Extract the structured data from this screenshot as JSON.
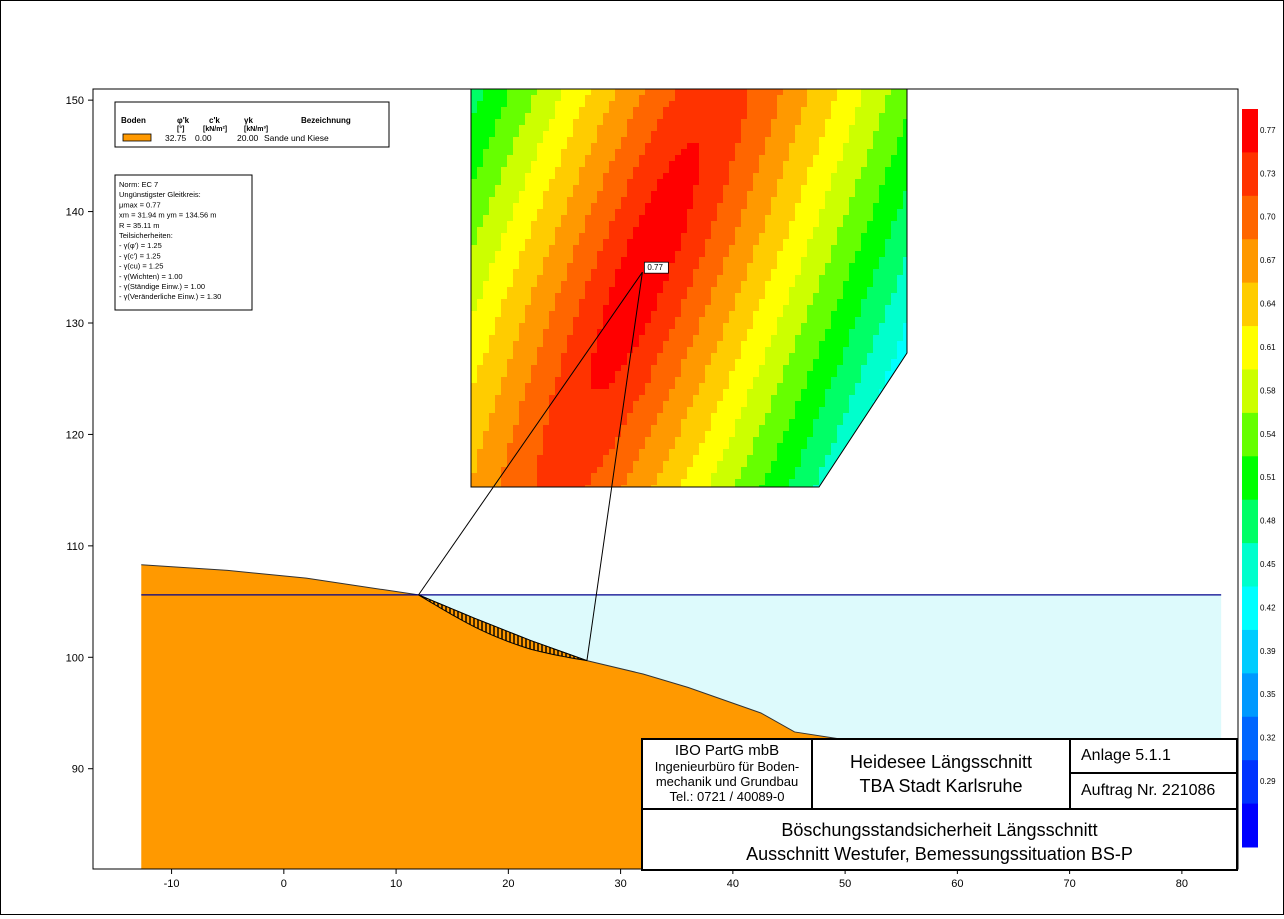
{
  "chart_data": {
    "type": "contour",
    "x_ticks": [
      "-10",
      "0",
      "10",
      "20",
      "30",
      "40",
      "50",
      "60",
      "70",
      "80"
    ],
    "y_ticks": [
      "150",
      "140",
      "130",
      "120",
      "110",
      "100",
      "90"
    ],
    "xlim": [
      -17,
      85
    ],
    "ylim": [
      81,
      151
    ],
    "grid": false,
    "ground_surface": [
      {
        "x": -12.7,
        "y": 108.3
      },
      {
        "x": -5,
        "y": 107.8
      },
      {
        "x": 2,
        "y": 107.1
      },
      {
        "x": 8,
        "y": 106.2
      },
      {
        "x": 12,
        "y": 105.6
      },
      {
        "x": 17,
        "y": 103.5
      },
      {
        "x": 22,
        "y": 101.5
      },
      {
        "x": 27,
        "y": 99.7
      },
      {
        "x": 32,
        "y": 98.5
      },
      {
        "x": 36,
        "y": 97.3
      },
      {
        "x": 42.5,
        "y": 95.0
      },
      {
        "x": 45.5,
        "y": 93.3
      },
      {
        "x": 50,
        "y": 92.6
      },
      {
        "x": 54.5,
        "y": 91.5
      }
    ],
    "water_level": 105.6,
    "water_extent_x": [
      12,
      83.5
    ],
    "critical_circle": {
      "center_x": 31.94,
      "center_y": 134.56,
      "radius": 35.11,
      "entry_x": 12.0,
      "exit_x": 27.0
    },
    "fos_min": 0.77,
    "min_label": "0.77",
    "color_scale": [
      {
        "label": "0.77",
        "color": "#ff0000"
      },
      {
        "label": "0.73",
        "color": "#ff3300"
      },
      {
        "label": "0.70",
        "color": "#ff6600"
      },
      {
        "label": "0.67",
        "color": "#ff9900"
      },
      {
        "label": "0.64",
        "color": "#ffcc00"
      },
      {
        "label": "0.61",
        "color": "#ffff00"
      },
      {
        "label": "0.58",
        "color": "#ccff00"
      },
      {
        "label": "0.54",
        "color": "#66ff00"
      },
      {
        "label": "0.51",
        "color": "#00ff00"
      },
      {
        "label": "0.48",
        "color": "#00ff66"
      },
      {
        "label": "0.45",
        "color": "#00ffcc"
      },
      {
        "label": "0.42",
        "color": "#00ffff"
      },
      {
        "label": "0.39",
        "color": "#00ccff"
      },
      {
        "label": "0.35",
        "color": "#0099ff"
      },
      {
        "label": "0.32",
        "color": "#0066ff"
      },
      {
        "label": "0.29",
        "color": "#0033ff"
      },
      {
        "label": "",
        "color": "#0000ff"
      }
    ]
  },
  "soil_legend": {
    "headers": [
      "Boden",
      "φ'k",
      "c'k",
      "γk",
      "Bezeichnung"
    ],
    "units": [
      "[°]",
      "[kN/m²]",
      "[kN/m³]"
    ],
    "rows": [
      {
        "color": "#ff9900",
        "phi": "32.75",
        "c": "0.00",
        "gamma": "20.00",
        "name": "Sande und Kiese"
      }
    ]
  },
  "results": {
    "lines": [
      "Norm:  EC 7",
      "Ungünstigster Gleitkreis:",
      "μmax = 0.77",
      "xm = 31.94 m   ym = 134.56 m",
      "R = 35.11 m",
      "Teilsicherheiten:",
      " - γ(φ') = 1.25",
      " - γ(c') = 1.25",
      " - γ(cu) = 1.25",
      " - γ(Wichten) = 1.00",
      " - γ(Ständige Einw.) = 1.00",
      " - γ(Veränderliche Einw.) = 1.30"
    ]
  },
  "titleblock": {
    "company": "IBO PartG mbB",
    "company_sub1": "Ingenieurbüro für Boden-",
    "company_sub2": "mechanik und Grundbau",
    "phone": "Tel.: 0721 / 40089-0",
    "project_line1": "Heidesee Längsschnitt",
    "project_line2": "TBA Stadt Karlsruhe",
    "anlage": "Anlage 5.1.1",
    "auftrag": "Auftrag Nr. 221086",
    "title_line1": "Böschungsstandsicherheit Längsschnitt",
    "title_line2": "Ausschnitt Westufer, Bemessungssituation BS-P"
  }
}
